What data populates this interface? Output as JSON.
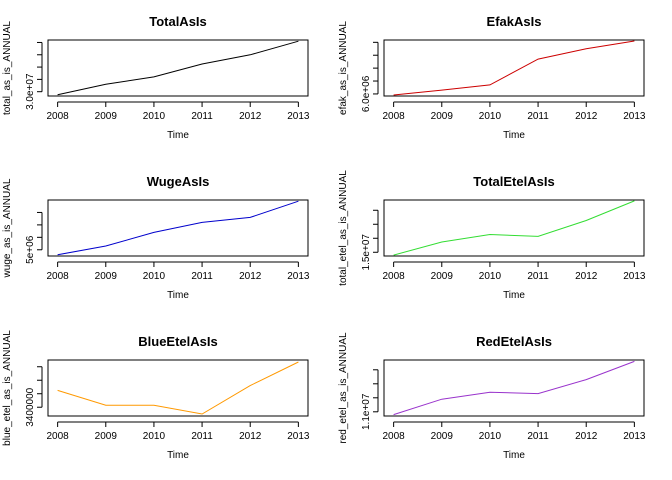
{
  "chart_data": [
    {
      "type": "line",
      "title": "TotalAsIs",
      "xlabel": "Time",
      "ylabel": "total_as_is_ANNUAL",
      "x": [
        2008,
        2009,
        2010,
        2011,
        2012,
        2013
      ],
      "values": [
        29500000,
        31200000,
        32400000,
        34500000,
        36000000,
        38200000
      ],
      "ylim": [
        29300000,
        38400000
      ],
      "yticks": [
        30000000,
        32000000,
        34000000,
        36000000,
        38000000
      ],
      "ytick_labels": [
        "3.0e+07",
        "",
        "",
        "",
        ""
      ],
      "color": "#000000"
    },
    {
      "type": "line",
      "title": "EfakAsIs",
      "xlabel": "Time",
      "ylabel": "efak_as_is_ANNUAL",
      "x": [
        2008,
        2009,
        2010,
        2011,
        2012,
        2013
      ],
      "values": [
        5960000,
        6150000,
        6350000,
        7350000,
        7750000,
        8050000
      ],
      "ylim": [
        5920000,
        8090000
      ],
      "yticks": [
        6000000,
        6500000,
        7000000,
        7500000,
        8000000
      ],
      "ytick_labels": [
        "6.0e+06",
        "",
        "",
        "",
        ""
      ],
      "color": "#cc0000"
    },
    {
      "type": "line",
      "title": "WugeAsIs",
      "xlabel": "Time",
      "ylabel": "wuge_as_is_ANNUAL",
      "x": [
        2008,
        2009,
        2010,
        2011,
        2012,
        2013
      ],
      "values": [
        4800000,
        5150000,
        5700000,
        6100000,
        6300000,
        6950000
      ],
      "ylim": [
        4750000,
        7000000
      ],
      "yticks": [
        5000000,
        5500000,
        6000000,
        6500000
      ],
      "ytick_labels": [
        "5e+06",
        "",
        "",
        ""
      ],
      "color": "#0000cc"
    },
    {
      "type": "line",
      "title": "TotalEtelAsIs",
      "xlabel": "Time",
      "ylabel": "total_etel_as_is_ANNUAL",
      "x": [
        2008,
        2009,
        2010,
        2011,
        2012,
        2013
      ],
      "values": [
        14700000,
        16100000,
        16900000,
        16700000,
        18400000,
        20500000
      ],
      "ylim": [
        14600000,
        20600000
      ],
      "yticks": [
        15000000,
        16500000,
        18000000,
        19500000
      ],
      "ytick_labels": [
        "1.5e+07",
        "",
        "",
        ""
      ],
      "color": "#33dd33"
    },
    {
      "type": "line",
      "title": "BlueEtelAsIs",
      "xlabel": "Time",
      "ylabel": "blue_etel_as_is_ANNUAL",
      "x": [
        2008,
        2009,
        2010,
        2011,
        2012,
        2013
      ],
      "values": [
        3650000,
        3430000,
        3430000,
        3300000,
        3720000,
        4070000
      ],
      "ylim": [
        3270000,
        4100000
      ],
      "yticks": [
        3400000,
        3600000,
        3800000,
        4000000
      ],
      "ytick_labels": [
        "3400000",
        "",
        "",
        ""
      ],
      "color": "#ff9900"
    },
    {
      "type": "line",
      "title": "RedEtelAsIs",
      "xlabel": "Time",
      "ylabel": "red_etel_as_is_ANNUAL",
      "x": [
        2008,
        2009,
        2010,
        2011,
        2012,
        2013
      ],
      "values": [
        10800000,
        11900000,
        12400000,
        12300000,
        13300000,
        14600000
      ],
      "ylim": [
        10700000,
        14700000
      ],
      "yticks": [
        11000000,
        12000000,
        13000000,
        14000000
      ],
      "ytick_labels": [
        "1.1e+07",
        "",
        "",
        ""
      ],
      "color": "#9933cc"
    }
  ]
}
